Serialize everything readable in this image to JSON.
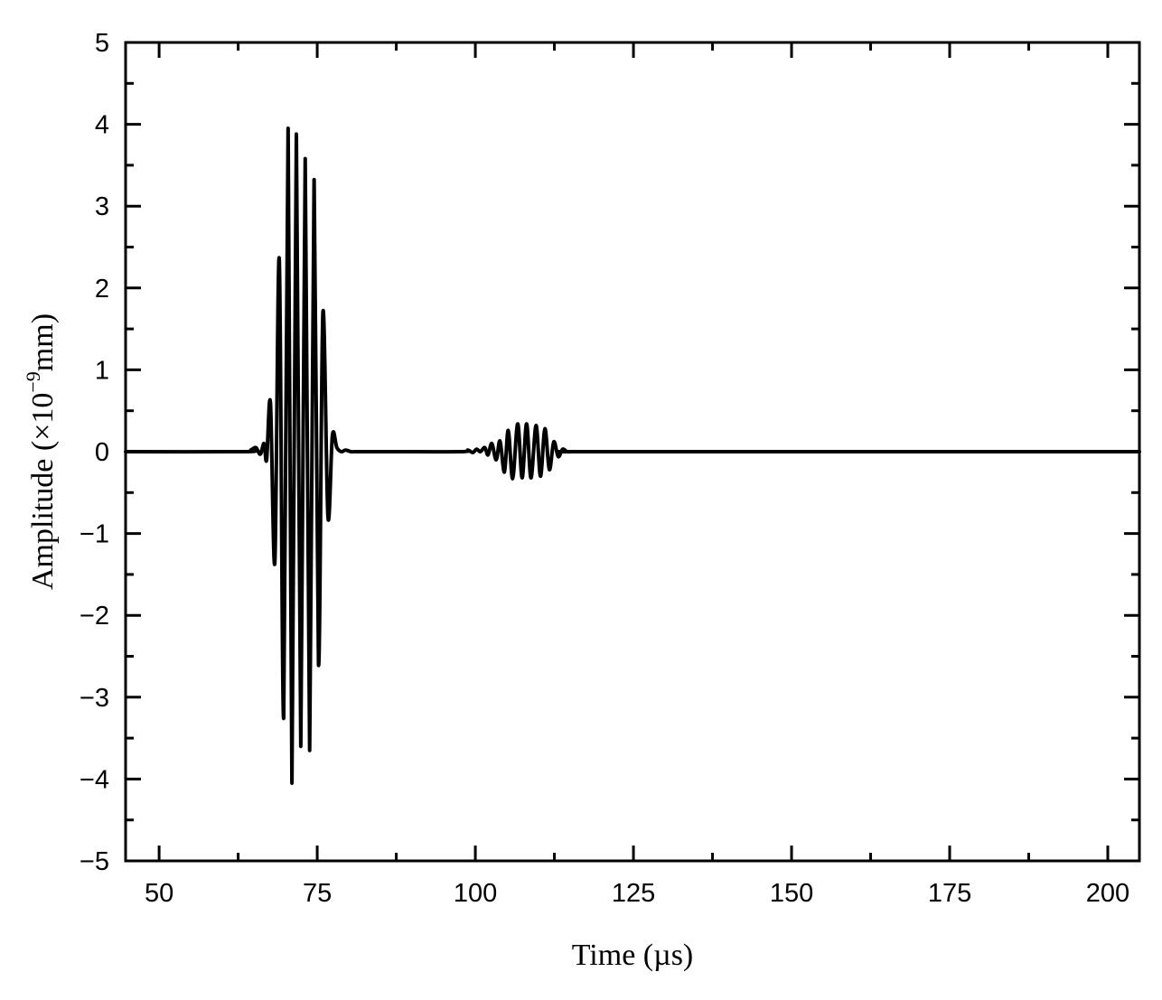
{
  "chart_data": {
    "type": "line",
    "title": "",
    "xlabel": "Time (µs)",
    "ylabel_main": "Amplitude (×10",
    "ylabel_exp": "−9",
    "ylabel_unit": "mm)",
    "xlim": [
      44.7,
      205
    ],
    "ylim": [
      -5,
      5
    ],
    "x_ticks": [
      50,
      75,
      100,
      125,
      150,
      175,
      200
    ],
    "x_tick_labels": [
      "50",
      "75",
      "100",
      "125",
      "150",
      "175",
      "200"
    ],
    "y_ticks": [
      -5,
      -4,
      -3,
      -2,
      -1,
      0,
      1,
      2,
      3,
      4,
      5
    ],
    "y_tick_labels": [
      "−5",
      "−4",
      "−3",
      "−2",
      "−1",
      "0",
      "1",
      "2",
      "3",
      "4",
      "5"
    ],
    "grid": false,
    "legend": "none",
    "line_color": "#000000",
    "series": [
      {
        "x": [
          44.7,
          63.5,
          64.5,
          65.3,
          66.0,
          66.6,
          67.0,
          67.6,
          68.3,
          69.0,
          69.7,
          70.4,
          71.0,
          71.7,
          72.4,
          73.1,
          73.8,
          74.5,
          75.2,
          75.9,
          76.7,
          77.4,
          78.1,
          78.8,
          79.5,
          80.3,
          81.0,
          81.6,
          82.3,
          83.0,
          83.6,
          84.2,
          85.0,
          86.0,
          87.5,
          98.0,
          98.8,
          99.6,
          100.2,
          100.8,
          101.5,
          102.0,
          102.6,
          103.3,
          103.9,
          104.6,
          105.2,
          105.9,
          106.7,
          107.4,
          108.1,
          108.8,
          109.6,
          110.3,
          111.0,
          111.7,
          112.4,
          113.1,
          113.8,
          114.5,
          115.2,
          115.9,
          116.6,
          117.3,
          118.0,
          118.7,
          119.5,
          205.0
        ],
        "values": [
          0.0,
          0.0,
          0.02,
          0.05,
          -0.03,
          0.1,
          -0.1,
          0.6,
          -1.35,
          2.35,
          -3.25,
          3.95,
          -4.05,
          3.88,
          -3.6,
          3.58,
          -3.65,
          3.32,
          -2.6,
          1.7,
          -0.8,
          0.2,
          0.05,
          0.0,
          0.02,
          0.0,
          0.0,
          0.0,
          0.0,
          0.0,
          0.0,
          0.0,
          0.0,
          0.0,
          0.0,
          0.0,
          0.02,
          -0.01,
          0.03,
          0.0,
          0.05,
          -0.04,
          0.1,
          -0.1,
          0.13,
          -0.25,
          0.26,
          -0.33,
          0.34,
          -0.32,
          0.34,
          -0.32,
          0.32,
          -0.3,
          0.28,
          -0.22,
          0.12,
          -0.06,
          0.03,
          0.0,
          0.0,
          0.0,
          0.0,
          0.0,
          0.0,
          0.0,
          0.0,
          0.0
        ]
      }
    ]
  }
}
